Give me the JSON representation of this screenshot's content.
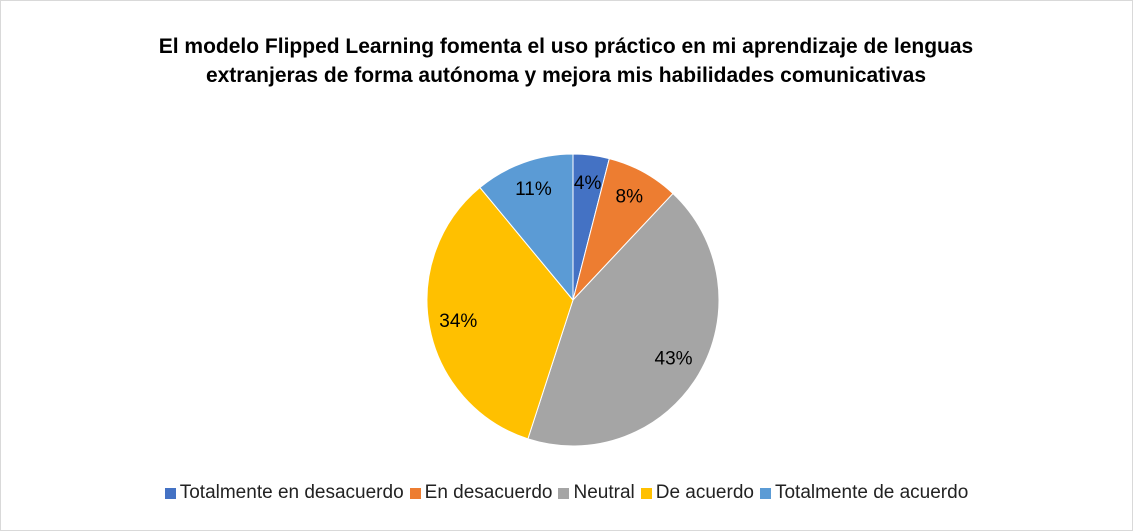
{
  "chart_data": {
    "type": "pie",
    "title": "El modelo Flipped Learning fomenta el uso práctico en mi aprendizaje de lenguas extranjeras de forma autónoma y mejora mis habilidades comunicativas",
    "categories": [
      "Totalmente en desacuerdo",
      "En desacuerdo",
      "Neutral",
      "De acuerdo",
      "Totalmente de acuerdo"
    ],
    "values": [
      4,
      8,
      43,
      34,
      11
    ],
    "value_labels": [
      "4%",
      "8%",
      "43%",
      "34%",
      "11%"
    ],
    "colors": [
      "#4472c4",
      "#ed7d31",
      "#a5a5a5",
      "#ffc000",
      "#5b9bd5"
    ],
    "legend": "bottom"
  }
}
